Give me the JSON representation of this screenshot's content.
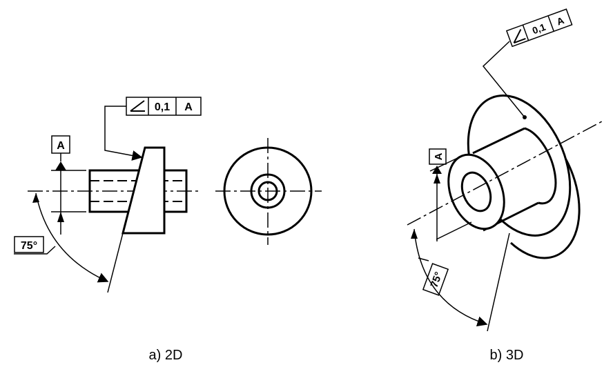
{
  "figure_2d": {
    "caption": "a) 2D",
    "datum_label": "A",
    "angle_label": "75°",
    "frame": {
      "tolerance": "0,1",
      "datum": "A",
      "symbol": "angularity-icon"
    }
  },
  "figure_3d": {
    "caption": "b) 3D",
    "datum_label": "A",
    "angle_label": "75°",
    "frame": {
      "tolerance": "0,1",
      "datum": "A",
      "symbol": "angularity-icon"
    }
  }
}
